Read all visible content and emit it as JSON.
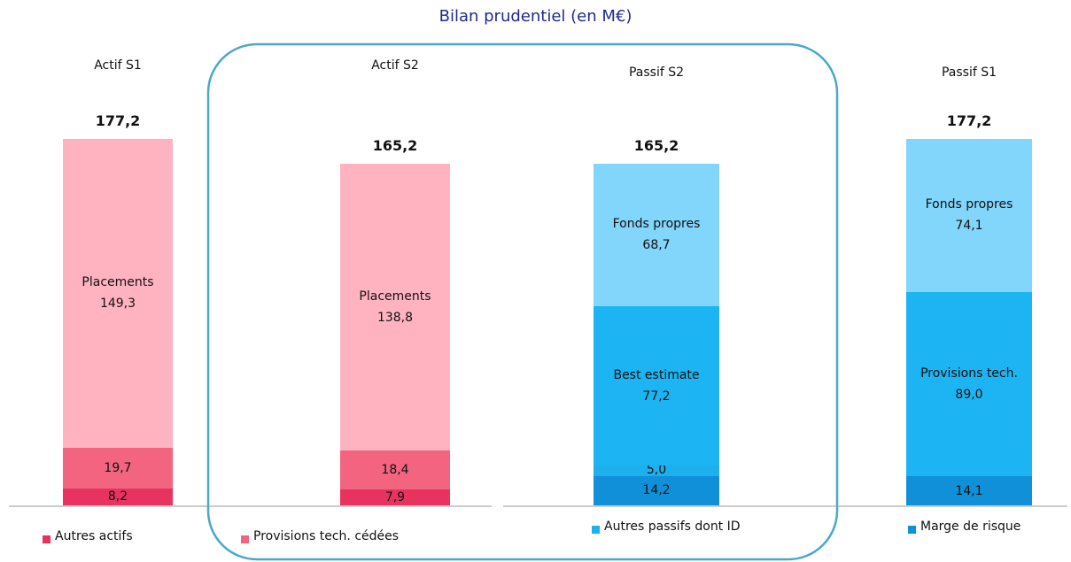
{
  "chart_data": {
    "type": "stacked-bar",
    "title": "Bilan prudentiel (en M€)",
    "ylim": [
      0,
      180
    ],
    "bars": [
      {
        "name": "Actif  S1",
        "total": 177.2,
        "total_label": "177,2",
        "segments": [
          {
            "value": 8.2,
            "value_label": "8,2",
            "color": "#e8335f"
          },
          {
            "value": 19.7,
            "value_label": "19,7",
            "color": "#f2647f"
          },
          {
            "name": "Placements",
            "value": 149.3,
            "value_label": "149,3",
            "color": "#ffb3c1"
          }
        ]
      },
      {
        "name": "Actif  S2",
        "total": 165.2,
        "total_label": "165,2",
        "segments": [
          {
            "value": 7.9,
            "value_label": "7,9",
            "color": "#e8335f"
          },
          {
            "value": 18.4,
            "value_label": "18,4",
            "color": "#f2647f"
          },
          {
            "name": "Placements",
            "value": 138.8,
            "value_label": "138,8",
            "color": "#ffb3c1"
          }
        ]
      },
      {
        "name": "Passif S2",
        "total": 165.2,
        "total_label": "165,2",
        "segments": [
          {
            "value": 14.2,
            "value_label": "14,2",
            "color": "#0f90d8"
          },
          {
            "value": 5.0,
            "value_label": "5,0",
            "color": "#1cb0ef"
          },
          {
            "name": "Best estimate",
            "value": 77.2,
            "value_label": "77,2",
            "color": "#1cb4f2"
          },
          {
            "name": "Fonds propres",
            "value": 68.7,
            "value_label": "68,7",
            "color": "#82d5fb"
          }
        ]
      },
      {
        "name": "Passif S1",
        "total": 177.2,
        "total_label": "177,2",
        "segments": [
          {
            "value": 14.1,
            "value_label": "14,1",
            "color": "#0f90d8"
          },
          {
            "name": "Provisions tech.",
            "value": 89.0,
            "value_label": "89,0",
            "color": "#1cb4f2"
          },
          {
            "name": "Fonds propres",
            "value": 74.1,
            "value_label": "74,1",
            "color": "#82d5fb"
          }
        ]
      }
    ],
    "legend": [
      {
        "name": "Autres actifs",
        "color": "#e8335f"
      },
      {
        "name": "Provisions tech. cédées",
        "color": "#f2647f"
      },
      {
        "name": "Autres passifs dont ID",
        "color": "#1cb0ef"
      },
      {
        "name": "Marge de risque",
        "color": "#0f90d8"
      }
    ]
  }
}
